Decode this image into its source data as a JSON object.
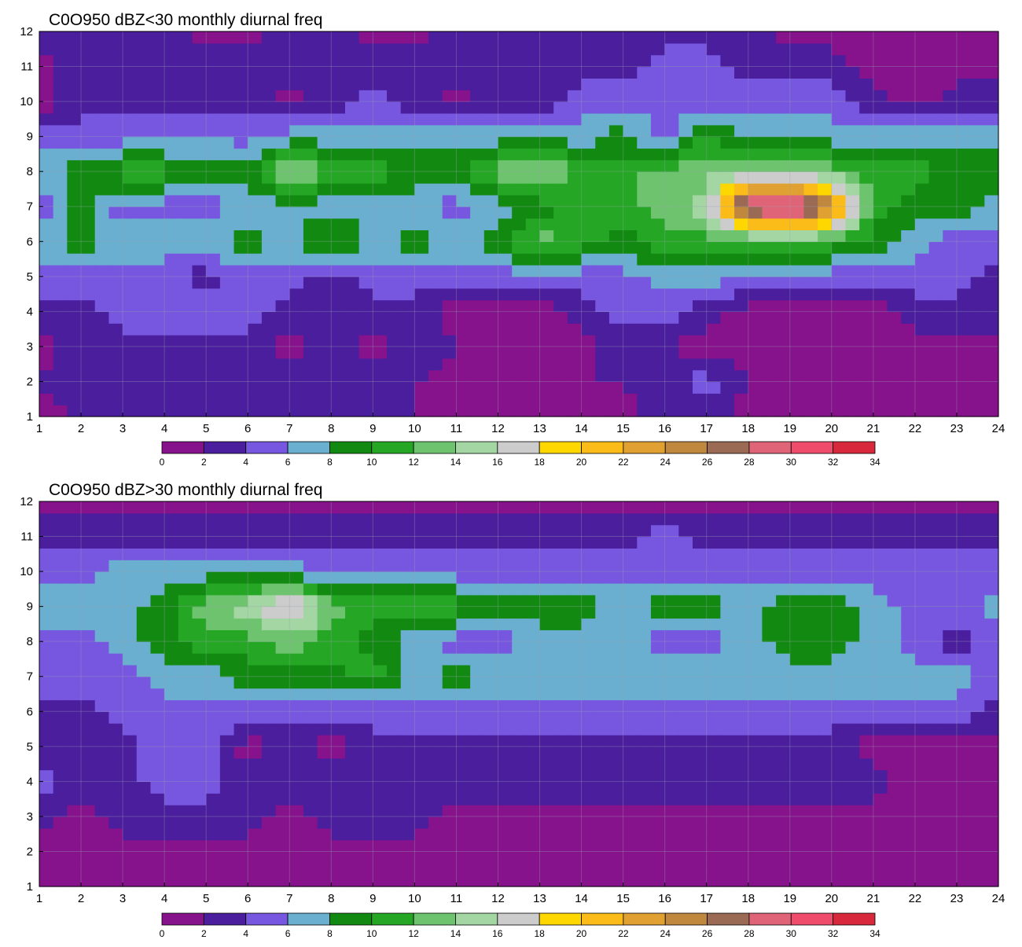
{
  "palette": {
    "levels": [
      0,
      2,
      4,
      6,
      8,
      10,
      12,
      14,
      16,
      18,
      20,
      22,
      24,
      26,
      28,
      30,
      32,
      34
    ],
    "colors": [
      "#86128c",
      "#4b1e9e",
      "#7757e0",
      "#6aaed0",
      "#128a12",
      "#25a625",
      "#6ec46e",
      "#a3d6a3",
      "#cccccc",
      "#ffd700",
      "#fbbc1a",
      "#e0a032",
      "#c0883e",
      "#9a6a54",
      "#e06478",
      "#ee4c6a",
      "#d8283c"
    ],
    "contour_line": "#f0b030"
  },
  "chart_data": [
    {
      "type": "heatmap",
      "title": "C0O950 dBZ<30 monthly diurnal freq",
      "xlabel": "",
      "ylabel": "",
      "x_ticks": [
        1,
        2,
        3,
        4,
        5,
        6,
        7,
        8,
        9,
        10,
        11,
        12,
        13,
        14,
        15,
        16,
        17,
        18,
        19,
        20,
        21,
        22,
        23,
        24
      ],
      "y_ticks": [
        1,
        2,
        3,
        4,
        5,
        6,
        7,
        8,
        9,
        10,
        11,
        12
      ],
      "xlim": [
        1,
        24
      ],
      "ylim": [
        1,
        12
      ],
      "grid": true,
      "colorbar_levels": [
        0,
        2,
        4,
        6,
        8,
        10,
        12,
        14,
        16,
        18,
        20,
        22,
        24,
        26,
        28,
        30,
        32,
        34
      ],
      "z": [
        [
          1,
          2,
          2,
          3,
          3,
          2,
          2,
          3,
          3,
          2,
          1,
          1,
          1,
          1,
          1,
          3,
          3,
          1,
          1,
          1,
          1,
          1,
          1,
          1
        ],
        [
          2,
          3,
          3,
          3,
          4,
          3,
          3,
          2,
          3,
          2,
          1,
          1,
          1,
          2,
          2,
          3,
          5,
          2,
          1,
          1,
          1,
          1,
          1,
          1
        ],
        [
          1,
          3,
          3,
          3,
          3,
          3,
          1,
          3,
          1,
          3,
          2,
          1,
          1,
          1,
          3,
          2,
          1,
          1,
          1,
          1,
          1,
          1,
          1,
          1
        ],
        [
          3,
          3,
          5,
          5,
          5,
          5,
          3,
          3,
          3,
          3,
          1,
          1,
          1,
          3,
          5,
          5,
          3,
          1,
          1,
          1,
          1,
          3,
          3,
          3
        ],
        [
          5,
          5,
          5,
          5,
          3,
          5,
          5,
          3,
          5,
          5,
          5,
          5,
          5,
          5,
          5,
          7,
          7,
          5,
          5,
          5,
          5,
          5,
          5,
          3
        ],
        [
          7,
          9,
          7,
          7,
          7,
          9,
          7,
          11,
          7,
          9,
          7,
          9,
          13,
          11,
          9,
          11,
          11,
          11,
          11,
          11,
          9,
          7,
          5,
          5
        ],
        [
          5,
          9,
          5,
          5,
          5,
          7,
          7,
          7,
          7,
          7,
          5,
          7,
          9,
          11,
          11,
          13,
          15,
          31,
          33,
          25,
          11,
          9,
          9,
          7
        ],
        [
          7,
          9,
          11,
          11,
          9,
          9,
          15,
          11,
          11,
          9,
          9,
          13,
          15,
          11,
          11,
          13,
          13,
          15,
          15,
          13,
          11,
          11,
          9,
          9
        ],
        [
          5,
          5,
          5,
          5,
          6,
          5,
          7,
          7,
          7,
          7,
          7,
          7,
          7,
          7,
          9,
          5,
          11,
          7,
          7,
          7,
          7,
          7,
          7,
          7
        ],
        [
          1,
          3,
          3,
          3,
          3,
          3,
          1,
          3,
          5,
          3,
          1,
          3,
          3,
          5,
          5,
          5,
          5,
          5,
          5,
          5,
          3,
          1,
          3,
          3
        ],
        [
          1,
          3,
          3,
          3,
          3,
          3,
          3,
          3,
          3,
          3,
          3,
          3,
          3,
          3,
          3,
          5,
          5,
          3,
          3,
          3,
          1,
          1,
          1,
          1
        ],
        [
          3,
          3,
          3,
          3,
          1,
          1,
          3,
          3,
          1,
          1,
          3,
          3,
          3,
          3,
          3,
          3,
          3,
          3,
          1,
          1,
          1,
          1,
          1,
          1
        ]
      ]
    },
    {
      "type": "heatmap",
      "title": "C0O950 dBZ>30 monthly diurnal freq",
      "xlabel": "",
      "ylabel": "",
      "x_ticks": [
        1,
        2,
        3,
        4,
        5,
        6,
        7,
        8,
        9,
        10,
        11,
        12,
        13,
        14,
        15,
        16,
        17,
        18,
        19,
        20,
        21,
        22,
        23,
        24
      ],
      "y_ticks": [
        1,
        2,
        3,
        4,
        5,
        6,
        7,
        8,
        9,
        10,
        11,
        12
      ],
      "xlim": [
        1,
        24
      ],
      "ylim": [
        1,
        12
      ],
      "grid": true,
      "colorbar_levels": [
        0,
        2,
        4,
        6,
        8,
        10,
        12,
        14,
        16,
        18,
        20,
        22,
        24,
        26,
        28,
        30,
        32,
        34
      ],
      "z": [
        [
          1,
          1,
          1,
          1,
          1,
          1,
          1,
          1,
          1,
          1,
          1,
          1,
          1,
          1,
          1,
          1,
          1,
          1,
          1,
          1,
          1,
          1,
          1,
          1
        ],
        [
          1,
          1,
          1,
          1,
          1,
          1,
          1,
          1,
          1,
          1,
          1,
          1,
          1,
          1,
          1,
          1,
          1,
          1,
          1,
          1,
          1,
          1,
          1,
          1
        ],
        [
          3,
          1,
          3,
          3,
          3,
          3,
          1,
          3,
          3,
          3,
          1,
          1,
          1,
          1,
          1,
          1,
          1,
          1,
          1,
          1,
          1,
          1,
          1,
          1
        ],
        [
          5,
          3,
          3,
          5,
          5,
          3,
          3,
          3,
          3,
          3,
          3,
          3,
          3,
          3,
          3,
          3,
          3,
          3,
          3,
          3,
          3,
          1,
          1,
          1
        ],
        [
          3,
          3,
          3,
          5,
          5,
          1,
          3,
          1,
          3,
          3,
          3,
          3,
          3,
          3,
          3,
          3,
          3,
          3,
          3,
          3,
          1,
          1,
          1,
          1
        ],
        [
          3,
          3,
          5,
          5,
          5,
          5,
          5,
          5,
          5,
          5,
          5,
          5,
          5,
          5,
          5,
          5,
          5,
          5,
          5,
          5,
          5,
          5,
          5,
          3
        ],
        [
          5,
          5,
          5,
          7,
          7,
          9,
          9,
          9,
          11,
          7,
          9,
          7,
          7,
          7,
          7,
          7,
          7,
          7,
          7,
          7,
          7,
          7,
          7,
          5
        ],
        [
          5,
          5,
          7,
          9,
          11,
          11,
          13,
          11,
          9,
          7,
          5,
          5,
          7,
          7,
          7,
          5,
          5,
          7,
          9,
          9,
          7,
          5,
          3,
          5
        ],
        [
          7,
          7,
          7,
          9,
          13,
          15,
          19,
          13,
          11,
          11,
          11,
          9,
          9,
          9,
          7,
          9,
          9,
          7,
          9,
          9,
          7,
          5,
          5,
          7
        ],
        [
          5,
          5,
          7,
          7,
          7,
          7,
          7,
          5,
          5,
          5,
          5,
          5,
          5,
          5,
          5,
          5,
          5,
          5,
          5,
          5,
          5,
          5,
          5,
          5
        ],
        [
          3,
          3,
          3,
          3,
          3,
          3,
          3,
          3,
          3,
          3,
          3,
          3,
          3,
          3,
          3,
          5,
          3,
          3,
          3,
          3,
          3,
          3,
          3,
          3
        ],
        [
          1,
          1,
          1,
          1,
          1,
          1,
          1,
          1,
          1,
          1,
          1,
          1,
          1,
          1,
          1,
          1,
          1,
          1,
          1,
          1,
          1,
          1,
          1,
          1
        ]
      ]
    }
  ]
}
